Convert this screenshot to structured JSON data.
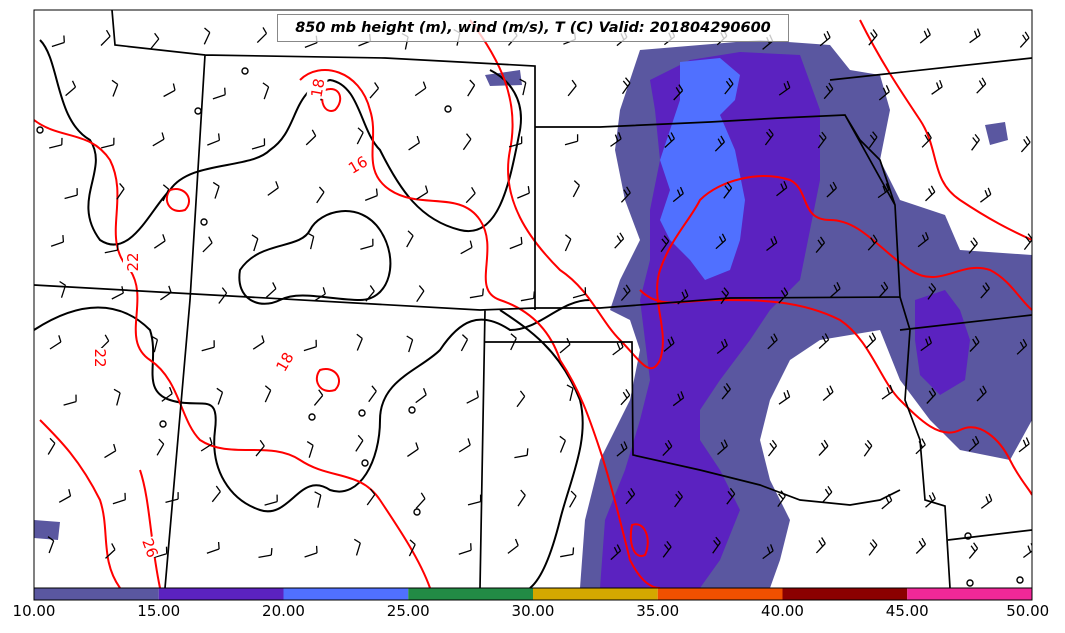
{
  "title": "850 mb height (m), wind (m/s), T (C) Valid: 201804290600",
  "colorbar": {
    "ticks": [
      "10.00",
      "15.00",
      "20.00",
      "25.00",
      "30.00",
      "35.00",
      "40.00",
      "45.00",
      "50.00"
    ],
    "colors": [
      "#5a57a0",
      "#5b22c0",
      "#5070ff",
      "#228b45",
      "#d4a800",
      "#f05000",
      "#8b0000",
      "#f02898"
    ]
  },
  "contour_labels": [
    "18",
    "16",
    "22",
    "22",
    "18",
    "26"
  ],
  "colors": {
    "temperature_contour": "#ff0000",
    "height_contour": "#000000",
    "borders": "#000000"
  }
}
